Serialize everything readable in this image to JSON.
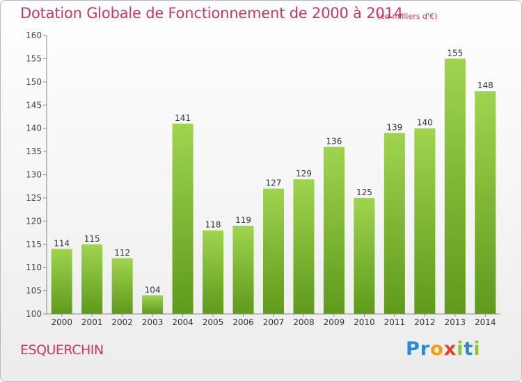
{
  "header": {
    "title": "Dotation Globale de Fonctionnement de 2000 à 2014",
    "subtitle": "(en milliers d'€)"
  },
  "footer": {
    "place_name": "ESQUERCHIN",
    "logo_text": "Proxiti"
  },
  "chart_data": {
    "type": "bar",
    "title": "Dotation Globale de Fonctionnement de 2000 à 2014",
    "subtitle": "(en milliers d'€)",
    "xlabel": "",
    "ylabel": "",
    "categories": [
      "2000",
      "2001",
      "2002",
      "2003",
      "2004",
      "2005",
      "2006",
      "2007",
      "2008",
      "2009",
      "2010",
      "2011",
      "2012",
      "2013",
      "2014"
    ],
    "values": [
      114,
      115,
      112,
      104,
      141,
      118,
      119,
      127,
      129,
      136,
      125,
      139,
      140,
      155,
      148
    ],
    "ylim": [
      100,
      160
    ],
    "yticks": [
      100,
      105,
      110,
      115,
      120,
      125,
      130,
      135,
      140,
      145,
      150,
      155,
      160
    ],
    "grid": false,
    "bar_color": "#7cb82f",
    "bar_color_light": "#9fd44e",
    "bar_color_dark": "#5f9a1c",
    "text_color": "#cc3366"
  }
}
